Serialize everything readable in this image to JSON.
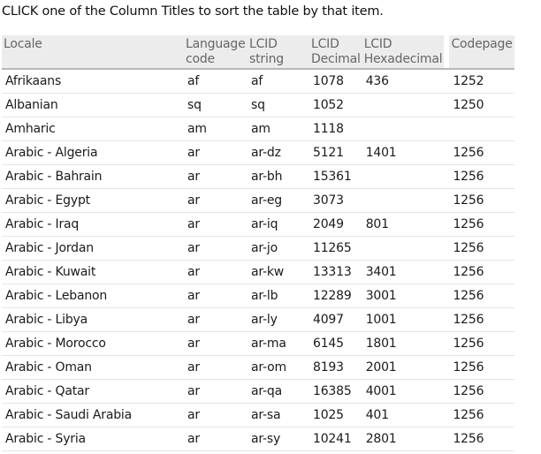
{
  "instructions": "CLICK one of the Column Titles to sort the table by that item.",
  "columns": {
    "locale": [
      "Locale"
    ],
    "language_code": [
      "Language",
      "code"
    ],
    "lcid_string": [
      "LCID",
      "string"
    ],
    "lcid_decimal": [
      "LCID",
      "Decimal"
    ],
    "lcid_hexadecimal": [
      "LCID",
      "Hexadecimal"
    ],
    "codepage": [
      "Codepage"
    ]
  },
  "rows": [
    {
      "locale": "Afrikaans",
      "lang": "af",
      "lcid": "af",
      "dec": "1078",
      "hex": "436",
      "cp": "1252"
    },
    {
      "locale": "Albanian",
      "lang": "sq",
      "lcid": "sq",
      "dec": "1052",
      "hex": "",
      "cp": "1250"
    },
    {
      "locale": "Amharic",
      "lang": "am",
      "lcid": "am",
      "dec": "1118",
      "hex": "",
      "cp": ""
    },
    {
      "locale": "Arabic - Algeria",
      "lang": "ar",
      "lcid": "ar-dz",
      "dec": "5121",
      "hex": "1401",
      "cp": "1256"
    },
    {
      "locale": "Arabic - Bahrain",
      "lang": "ar",
      "lcid": "ar-bh",
      "dec": "15361",
      "hex": "",
      "cp": "1256"
    },
    {
      "locale": "Arabic - Egypt",
      "lang": "ar",
      "lcid": "ar-eg",
      "dec": "3073",
      "hex": "",
      "cp": "1256"
    },
    {
      "locale": "Arabic - Iraq",
      "lang": "ar",
      "lcid": "ar-iq",
      "dec": "2049",
      "hex": "801",
      "cp": "1256"
    },
    {
      "locale": "Arabic - Jordan",
      "lang": "ar",
      "lcid": "ar-jo",
      "dec": "11265",
      "hex": "",
      "cp": "1256"
    },
    {
      "locale": "Arabic - Kuwait",
      "lang": "ar",
      "lcid": "ar-kw",
      "dec": "13313",
      "hex": "3401",
      "cp": "1256"
    },
    {
      "locale": "Arabic - Lebanon",
      "lang": "ar",
      "lcid": "ar-lb",
      "dec": "12289",
      "hex": "3001",
      "cp": "1256"
    },
    {
      "locale": "Arabic - Libya",
      "lang": "ar",
      "lcid": "ar-ly",
      "dec": "4097",
      "hex": "1001",
      "cp": "1256"
    },
    {
      "locale": "Arabic - Morocco",
      "lang": "ar",
      "lcid": "ar-ma",
      "dec": "6145",
      "hex": "1801",
      "cp": "1256"
    },
    {
      "locale": "Arabic - Oman",
      "lang": "ar",
      "lcid": "ar-om",
      "dec": "8193",
      "hex": "2001",
      "cp": "1256"
    },
    {
      "locale": "Arabic - Qatar",
      "lang": "ar",
      "lcid": "ar-qa",
      "dec": "16385",
      "hex": "4001",
      "cp": "1256"
    },
    {
      "locale": "Arabic - Saudi Arabia",
      "lang": "ar",
      "lcid": "ar-sa",
      "dec": "1025",
      "hex": "401",
      "cp": "1256"
    },
    {
      "locale": "Arabic - Syria",
      "lang": "ar",
      "lcid": "ar-sy",
      "dec": "10241",
      "hex": "2801",
      "cp": "1256"
    }
  ]
}
